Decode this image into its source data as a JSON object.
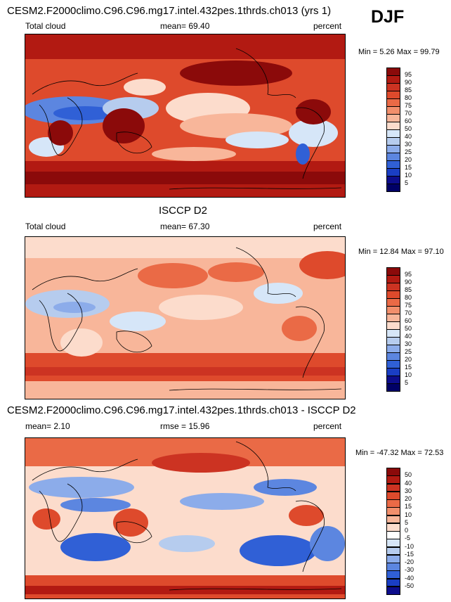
{
  "season": "DJF",
  "panels": [
    {
      "title": "CESM2.F2000climo.C96.C96.mg17.intel.432pes.1thrds.ch013 (yrs 1)",
      "left_label": "Total cloud",
      "center_label": "mean=  69.40",
      "right_label": "percent",
      "minmax": "Min =   5.26 Max =  99.79",
      "colorbar": {
        "labels": [
          "95",
          "90",
          "85",
          "80",
          "75",
          "70",
          "60",
          "50",
          "40",
          "30",
          "25",
          "20",
          "15",
          "10",
          "5"
        ],
        "colors": [
          "#8b0a0a",
          "#b21a12",
          "#cc3322",
          "#de4a2c",
          "#ea6a46",
          "#f28f6c",
          "#f8b69a",
          "#fcdccc",
          "#d6e6f8",
          "#b6ccee",
          "#8cacea",
          "#5c86e0",
          "#3060d6",
          "#1a3ec4",
          "#0d0d8c",
          "#000066"
        ]
      }
    },
    {
      "title": "ISCCP D2",
      "left_label": "Total cloud",
      "center_label": "mean=  67.30",
      "right_label": "percent",
      "minmax": "Min =  12.84 Max =  97.10",
      "colorbar": {
        "labels": [
          "95",
          "90",
          "85",
          "80",
          "75",
          "70",
          "60",
          "50",
          "40",
          "30",
          "25",
          "20",
          "15",
          "10",
          "5"
        ],
        "colors": [
          "#8b0a0a",
          "#b21a12",
          "#cc3322",
          "#de4a2c",
          "#ea6a46",
          "#f28f6c",
          "#f8b69a",
          "#fcdccc",
          "#d6e6f8",
          "#b6ccee",
          "#8cacea",
          "#5c86e0",
          "#3060d6",
          "#1a3ec4",
          "#0d0d8c",
          "#000066"
        ]
      }
    },
    {
      "title": "CESM2.F2000climo.C96.C96.mg17.intel.432pes.1thrds.ch013 - ISCCP D2",
      "left_label": "mean=   2.10",
      "center_label": "rmse =  15.96",
      "right_label": "percent",
      "minmax": "Min = -47.32 Max =  72.53",
      "colorbar": {
        "labels": [
          "50",
          "40",
          "30",
          "20",
          "15",
          "10",
          "5",
          "0",
          "-5",
          "-10",
          "-15",
          "-20",
          "-30",
          "-40",
          "-50"
        ],
        "colors": [
          "#8b0a0a",
          "#b21a12",
          "#cc3322",
          "#de4a2c",
          "#ea6a46",
          "#f28f6c",
          "#f8b69a",
          "#fcdccc",
          "#ffffff",
          "#d6e6f8",
          "#b6ccee",
          "#8cacea",
          "#5c86e0",
          "#3060d6",
          "#1a3ec4",
          "#0d0d8c"
        ]
      }
    }
  ]
}
